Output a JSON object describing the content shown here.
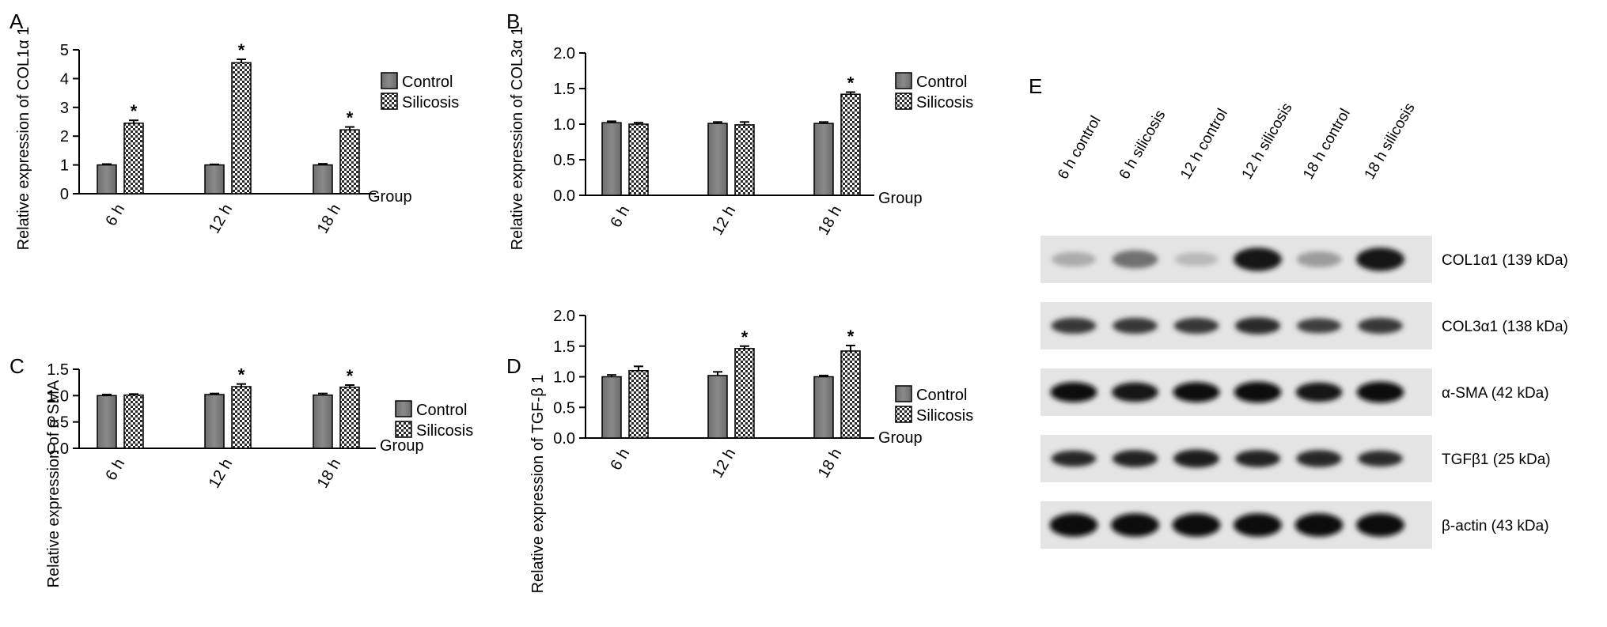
{
  "chart_data": [
    {
      "panel_label": "A",
      "type": "bar",
      "categories": [
        "6 h",
        "12 h",
        "18 h"
      ],
      "series": [
        {
          "name": "Control",
          "values": [
            1.0,
            1.0,
            1.0
          ],
          "errors": [
            0.03,
            0.02,
            0.04
          ]
        },
        {
          "name": "Silicosis",
          "values": [
            2.45,
            4.55,
            2.22
          ],
          "errors": [
            0.1,
            0.12,
            0.1
          ]
        }
      ],
      "significance": [
        "*",
        "*",
        "*"
      ],
      "xlabel": "Group",
      "ylabel": "Relative expression of COL1α 1",
      "ylim": [
        0,
        5
      ],
      "yticks": [
        "0",
        "1",
        "2",
        "3",
        "4",
        "5"
      ],
      "legend_position": "top-right",
      "grid": false
    },
    {
      "panel_label": "B",
      "type": "bar",
      "categories": [
        "6 h",
        "12 h",
        "18 h"
      ],
      "series": [
        {
          "name": "Control",
          "values": [
            1.02,
            1.01,
            1.01
          ],
          "errors": [
            0.02,
            0.02,
            0.02
          ]
        },
        {
          "name": "Silicosis",
          "values": [
            1.0,
            0.99,
            1.42
          ],
          "errors": [
            0.02,
            0.04,
            0.03
          ]
        }
      ],
      "significance": [
        "",
        "",
        "*"
      ],
      "xlabel": "Group",
      "ylabel": "Relative expression of COL3α 1",
      "ylim": [
        0,
        2.0
      ],
      "yticks": [
        "0.0",
        "0.5",
        "1.0",
        "1.5",
        "2.0"
      ],
      "legend_position": "top-right",
      "grid": false
    },
    {
      "panel_label": "C",
      "type": "bar",
      "categories": [
        "6 h",
        "12 h",
        "18 h"
      ],
      "series": [
        {
          "name": "Control",
          "values": [
            1.0,
            1.02,
            1.01
          ],
          "errors": [
            0.02,
            0.02,
            0.03
          ]
        },
        {
          "name": "Silicosis",
          "values": [
            1.01,
            1.17,
            1.16
          ],
          "errors": [
            0.02,
            0.05,
            0.04
          ]
        }
      ],
      "significance": [
        "",
        "*",
        "*"
      ],
      "xlabel": "Group",
      "ylabel": "Relative expression of α SMA",
      "ylim": [
        0,
        1.5
      ],
      "yticks": [
        "0.0",
        "0.5",
        "1.0",
        "1.5"
      ],
      "legend_position": "top-right",
      "grid": false
    },
    {
      "panel_label": "D",
      "type": "bar",
      "categories": [
        "6 h",
        "12 h",
        "18 h"
      ],
      "series": [
        {
          "name": "Control",
          "values": [
            1.0,
            1.02,
            1.0
          ],
          "errors": [
            0.03,
            0.06,
            0.02
          ]
        },
        {
          "name": "Silicosis",
          "values": [
            1.1,
            1.46,
            1.42
          ],
          "errors": [
            0.07,
            0.04,
            0.09
          ]
        }
      ],
      "significance": [
        "",
        "*",
        "*"
      ],
      "xlabel": "Group",
      "ylabel": "Relative expression of TGF-β 1",
      "ylim": [
        0,
        2.0
      ],
      "yticks": [
        "0.0",
        "0.5",
        "1.0",
        "1.5",
        "2.0"
      ],
      "legend_position": "top-right",
      "grid": false
    }
  ],
  "western_blot": {
    "panel_label": "E",
    "lanes": [
      "6 h control",
      "6 h silicosis",
      "12 h control",
      "12 h silicosis",
      "18 h control",
      "18 h silicosis"
    ],
    "rows": [
      {
        "label": "COL1α1 (139 kDa)",
        "intensity": [
          0.28,
          0.55,
          0.22,
          0.95,
          0.35,
          0.95
        ],
        "thickness": [
          0.5,
          0.65,
          0.45,
          0.9,
          0.55,
          0.9
        ]
      },
      {
        "label": "COL3α1 (138 kDa)",
        "intensity": [
          0.8,
          0.8,
          0.8,
          0.85,
          0.78,
          0.8
        ],
        "thickness": [
          0.55,
          0.55,
          0.55,
          0.6,
          0.5,
          0.55
        ]
      },
      {
        "label": "α-SMA (42 kDa)",
        "intensity": [
          0.97,
          0.95,
          0.97,
          0.97,
          0.95,
          0.97
        ],
        "thickness": [
          0.75,
          0.72,
          0.75,
          0.8,
          0.72,
          0.8
        ]
      },
      {
        "label": "TGFβ1 (25 kDa)",
        "intensity": [
          0.88,
          0.9,
          0.92,
          0.9,
          0.88,
          0.85
        ],
        "thickness": [
          0.55,
          0.6,
          0.65,
          0.6,
          0.6,
          0.55
        ]
      },
      {
        "label": "β-actin (43 kDa)",
        "intensity": [
          1.0,
          1.0,
          1.0,
          1.0,
          1.0,
          1.0
        ],
        "thickness": [
          0.9,
          0.9,
          0.9,
          0.9,
          0.9,
          0.9
        ]
      }
    ]
  }
}
